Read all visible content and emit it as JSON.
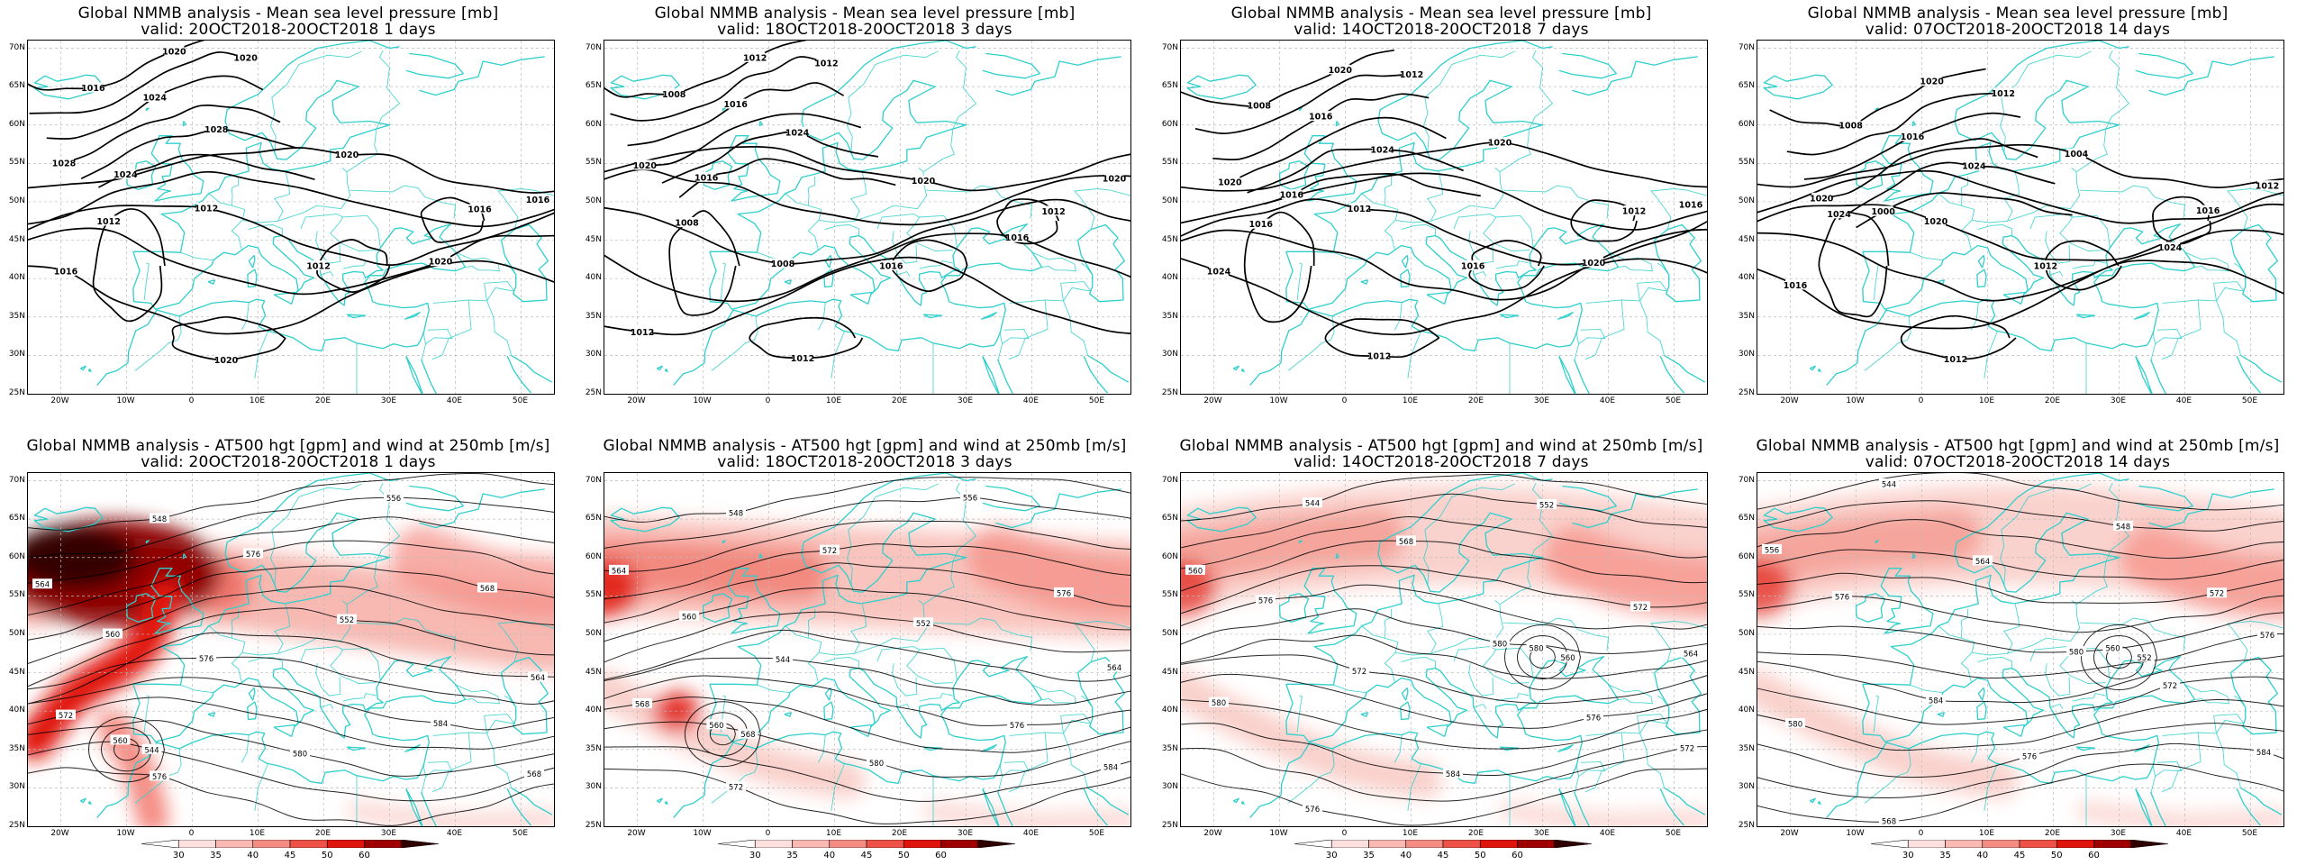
{
  "panels": [
    {
      "line1": "Global NMMB analysis - Mean sea level pressure [mb]",
      "line2": "valid: 20OCT2018-20OCT2018  1 days",
      "type": "mslp",
      "lead": 1,
      "labels": [
        "1016",
        "1020",
        "1024",
        "1028",
        "1028",
        "1024",
        "1020",
        "1016",
        "1012",
        "1020",
        "1016",
        "1012",
        "1016",
        "1020",
        "1012",
        "1020"
      ]
    },
    {
      "line1": "Global NMMB analysis - Mean sea level pressure [mb]",
      "line2": "valid: 18OCT2018-20OCT2018  3 days",
      "type": "mslp",
      "lead": 3,
      "labels": [
        "1008",
        "1012",
        "1016",
        "1020",
        "1024",
        "1016",
        "1020",
        "1020",
        "1008",
        "1016",
        "1012",
        "1016",
        "1012",
        "1012",
        "1008",
        "1012"
      ]
    },
    {
      "line1": "Global NMMB analysis - Mean sea level pressure [mb]",
      "line2": "valid: 14OCT2018-20OCT2018  7 days",
      "type": "mslp",
      "lead": 7,
      "labels": [
        "1008",
        "1012",
        "1016",
        "1020",
        "1024",
        "1016",
        "1020",
        "1016",
        "1012",
        "1020",
        "1024",
        "1016",
        "1012",
        "1012",
        "1016",
        "1020"
      ]
    },
    {
      "line1": "Global NMMB analysis - Mean sea level pressure [mb]",
      "line2": "valid: 07OCT2018-20OCT2018  14 days",
      "type": "mslp",
      "lead": 14,
      "labels": [
        "1008",
        "1012",
        "1016",
        "1020",
        "1024",
        "1000",
        "1004",
        "1012",
        "1020",
        "1024",
        "1016",
        "1012",
        "1016",
        "1012",
        "1024",
        "1020"
      ]
    },
    {
      "line1": "Global NMMB analysis - AT500 hgt [gpm] and wind at 250mb [m/s]",
      "line2": "valid: 20OCT2018-20OCT2018  1 days",
      "type": "hgt",
      "lead": 1,
      "labels": [
        "548",
        "556",
        "564",
        "576",
        "568",
        "560",
        "552",
        "564",
        "576",
        "584",
        "572",
        "580",
        "568",
        "576",
        "560",
        "544"
      ]
    },
    {
      "line1": "Global NMMB analysis - AT500 hgt [gpm] and wind at 250mb [m/s]",
      "line2": "valid: 18OCT2018-20OCT2018  3 days",
      "type": "hgt",
      "lead": 3,
      "labels": [
        "548",
        "556",
        "564",
        "572",
        "576",
        "560",
        "552",
        "564",
        "544",
        "576",
        "568",
        "580",
        "584",
        "572",
        "560",
        "568"
      ]
    },
    {
      "line1": "Global NMMB analysis - AT500 hgt [gpm] and wind at 250mb [m/s]",
      "line2": "valid: 14OCT2018-20OCT2018  7 days",
      "type": "hgt",
      "lead": 7,
      "labels": [
        "544",
        "552",
        "560",
        "568",
        "572",
        "576",
        "580",
        "564",
        "572",
        "576",
        "580",
        "584",
        "572",
        "576",
        "580",
        "560"
      ]
    },
    {
      "line1": "Global NMMB analysis - AT500 hgt [gpm] and wind at 250mb [m/s]",
      "line2": "valid: 07OCT2018-20OCT2018  14 days",
      "type": "hgt",
      "lead": 14,
      "labels": [
        "544",
        "548",
        "556",
        "564",
        "572",
        "576",
        "580",
        "576",
        "584",
        "572",
        "580",
        "576",
        "584",
        "568",
        "560",
        "552"
      ]
    }
  ],
  "axes": {
    "y_ticks": [
      "70N",
      "65N",
      "60N",
      "55N",
      "50N",
      "45N",
      "40N",
      "35N",
      "30N",
      "25N"
    ],
    "x_ticks": [
      "20W",
      "10W",
      "0",
      "10E",
      "20E",
      "30E",
      "40E",
      "50E"
    ]
  },
  "colorbar": {
    "ticks": [
      "30",
      "35",
      "40",
      "45",
      "50",
      "60"
    ],
    "colors": [
      "#ffffff",
      "#fde0de",
      "#fbb9b4",
      "#f58c83",
      "#ee5246",
      "#e0140a",
      "#9e0000",
      "#300000"
    ]
  },
  "colors": {
    "coast": "#2fcfcc",
    "contour": "#000000",
    "grid": "#bbbbbb"
  }
}
